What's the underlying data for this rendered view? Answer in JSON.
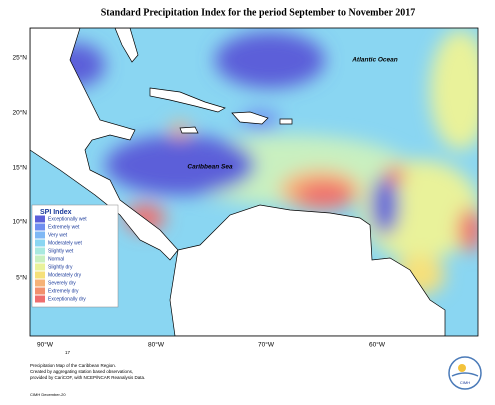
{
  "title": "Standard Precipitation Index for the period September to November 2017",
  "map_labels": {
    "ocean": "Atlantic Ocean",
    "sea": "Caribbean Sea"
  },
  "lat_labels": [
    "25°N",
    "20°N",
    "15°N",
    "10°N",
    "5°N"
  ],
  "lon_labels": [
    "90°W",
    "80°W",
    "70°W",
    "60°W"
  ],
  "legend": {
    "title": "SPI Index",
    "items": [
      {
        "name": "Exceptionally wet",
        "color": "#5b5fd9"
      },
      {
        "name": "Extremely wet",
        "color": "#6f8ef0"
      },
      {
        "name": "Very wet",
        "color": "#7fb8f5"
      },
      {
        "name": "Moderately wet",
        "color": "#8ad6f2"
      },
      {
        "name": "Slightly wet",
        "color": "#a9e9df"
      },
      {
        "name": "Normal",
        "color": "#c9f0c0"
      },
      {
        "name": "Slightly dry",
        "color": "#e9f29a"
      },
      {
        "name": "Moderately dry",
        "color": "#f6e07a"
      },
      {
        "name": "Severely dry",
        "color": "#f6b277"
      },
      {
        "name": "Extremely dry",
        "color": "#f2906e"
      },
      {
        "name": "Exceptionally dry",
        "color": "#ef6e6e"
      }
    ]
  },
  "page_number": "17",
  "footnote": [
    "Precipitation Map of the Caribbean Region.",
    "Created by aggregating station based observations,",
    "provided by CariCOF, with NCEP/NCAR Reanalysis Data."
  ],
  "credit": "CIMH December-20",
  "logo": "CIMH"
}
